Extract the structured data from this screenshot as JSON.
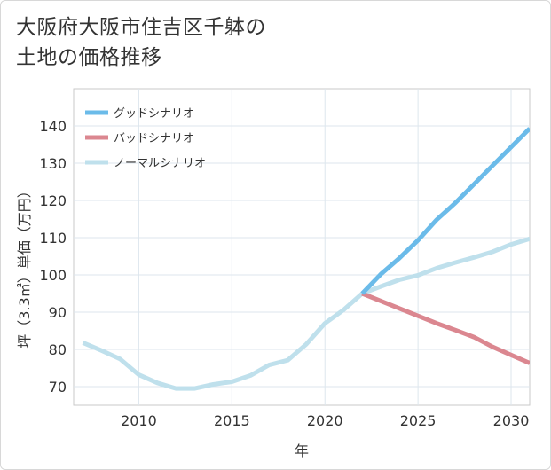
{
  "chart_data": {
    "type": "line",
    "title_lines": [
      "大阪府大阪市住吉区千躰の",
      "土地の価格推移"
    ],
    "xlabel": "年",
    "ylabel": "坪（3.3㎡）単価（万円）",
    "xlim": [
      2006.5,
      2031
    ],
    "ylim": [
      65,
      150
    ],
    "xticks": [
      2010,
      2015,
      2020,
      2025,
      2030
    ],
    "yticks": [
      70,
      80,
      90,
      100,
      110,
      120,
      130,
      140
    ],
    "grid": true,
    "legend_position": "top-left",
    "series": [
      {
        "name": "グッドシナリオ",
        "color": "#6bbbe9",
        "x": [
          2022,
          2023,
          2024,
          2025,
          2026,
          2027,
          2028,
          2029,
          2030,
          2031
        ],
        "y": [
          95,
          100.2,
          104.5,
          109.3,
          114.8,
          119.3,
          124.3,
          129.3,
          134.3,
          139.3
        ]
      },
      {
        "name": "バッドシナリオ",
        "color": "#db8790",
        "x": [
          2022,
          2023,
          2024,
          2025,
          2026,
          2027,
          2028,
          2029,
          2030,
          2031
        ],
        "y": [
          95,
          93,
          91,
          89,
          87,
          85.2,
          83.3,
          80.7,
          78.5,
          76.3
        ]
      },
      {
        "name": "ノーマルシナリオ",
        "color": "#bfe0ec",
        "x": [
          2007,
          2008,
          2009,
          2010,
          2011,
          2012,
          2013,
          2014,
          2015,
          2016,
          2017,
          2018,
          2019,
          2020,
          2021,
          2022,
          2023,
          2024,
          2025,
          2026,
          2027,
          2028,
          2029,
          2030,
          2031
        ],
        "y": [
          81.8,
          79.7,
          77.4,
          73.2,
          71,
          69.5,
          69.5,
          70.6,
          71.3,
          73,
          75.8,
          77.1,
          81.4,
          87,
          90.6,
          95,
          96.9,
          98.7,
          99.9,
          101.8,
          103.3,
          104.7,
          106.2,
          108.2,
          109.7
        ]
      }
    ]
  }
}
